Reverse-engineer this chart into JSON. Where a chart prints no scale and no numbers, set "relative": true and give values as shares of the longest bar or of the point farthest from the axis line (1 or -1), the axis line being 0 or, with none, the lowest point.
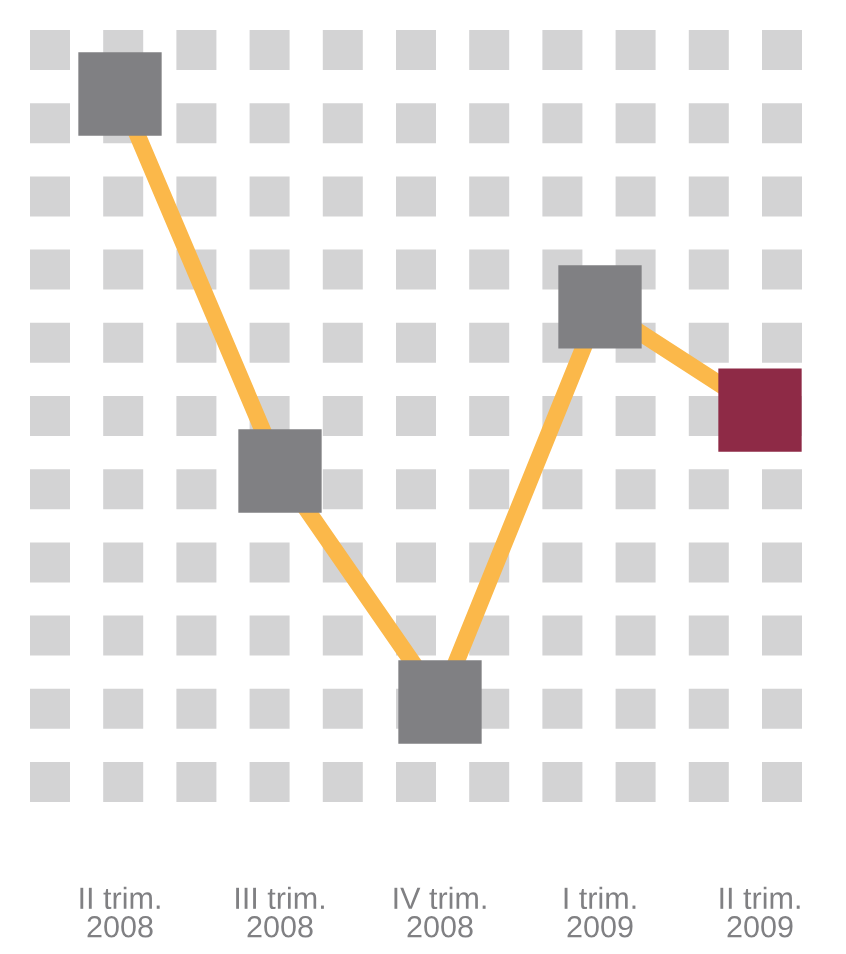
{
  "chart_data": {
    "type": "line",
    "relative": true,
    "categories": [
      "II trim.\n2008",
      "III trim.\n2008",
      "IV trim.\n2008",
      "I trim.\n2009",
      "II trim.\n2009"
    ],
    "series": [
      {
        "color": "#fbb84a",
        "colors": [
          "#808083",
          "#808083",
          "#808083",
          "#808083",
          "#8e2a46"
        ],
        "values": [
          1,
          0.38,
          0,
          0.65,
          0.48
        ]
      }
    ],
    "marker": "square",
    "line_style": "solid",
    "grid": false,
    "legend": false
  }
}
